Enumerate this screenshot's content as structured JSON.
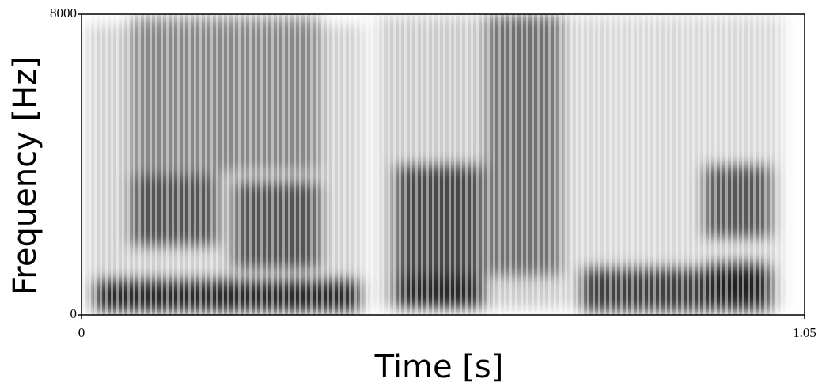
{
  "chart_data": {
    "type": "spectrogram",
    "x_label": "Time [s]",
    "y_label": "Frequency [Hz]",
    "xlim": [
      0,
      1.05
    ],
    "xticks": [
      0,
      1.05
    ],
    "ylim": [
      0,
      8000
    ],
    "yticks": [
      0,
      8000
    ],
    "colormap": "gray"
  }
}
